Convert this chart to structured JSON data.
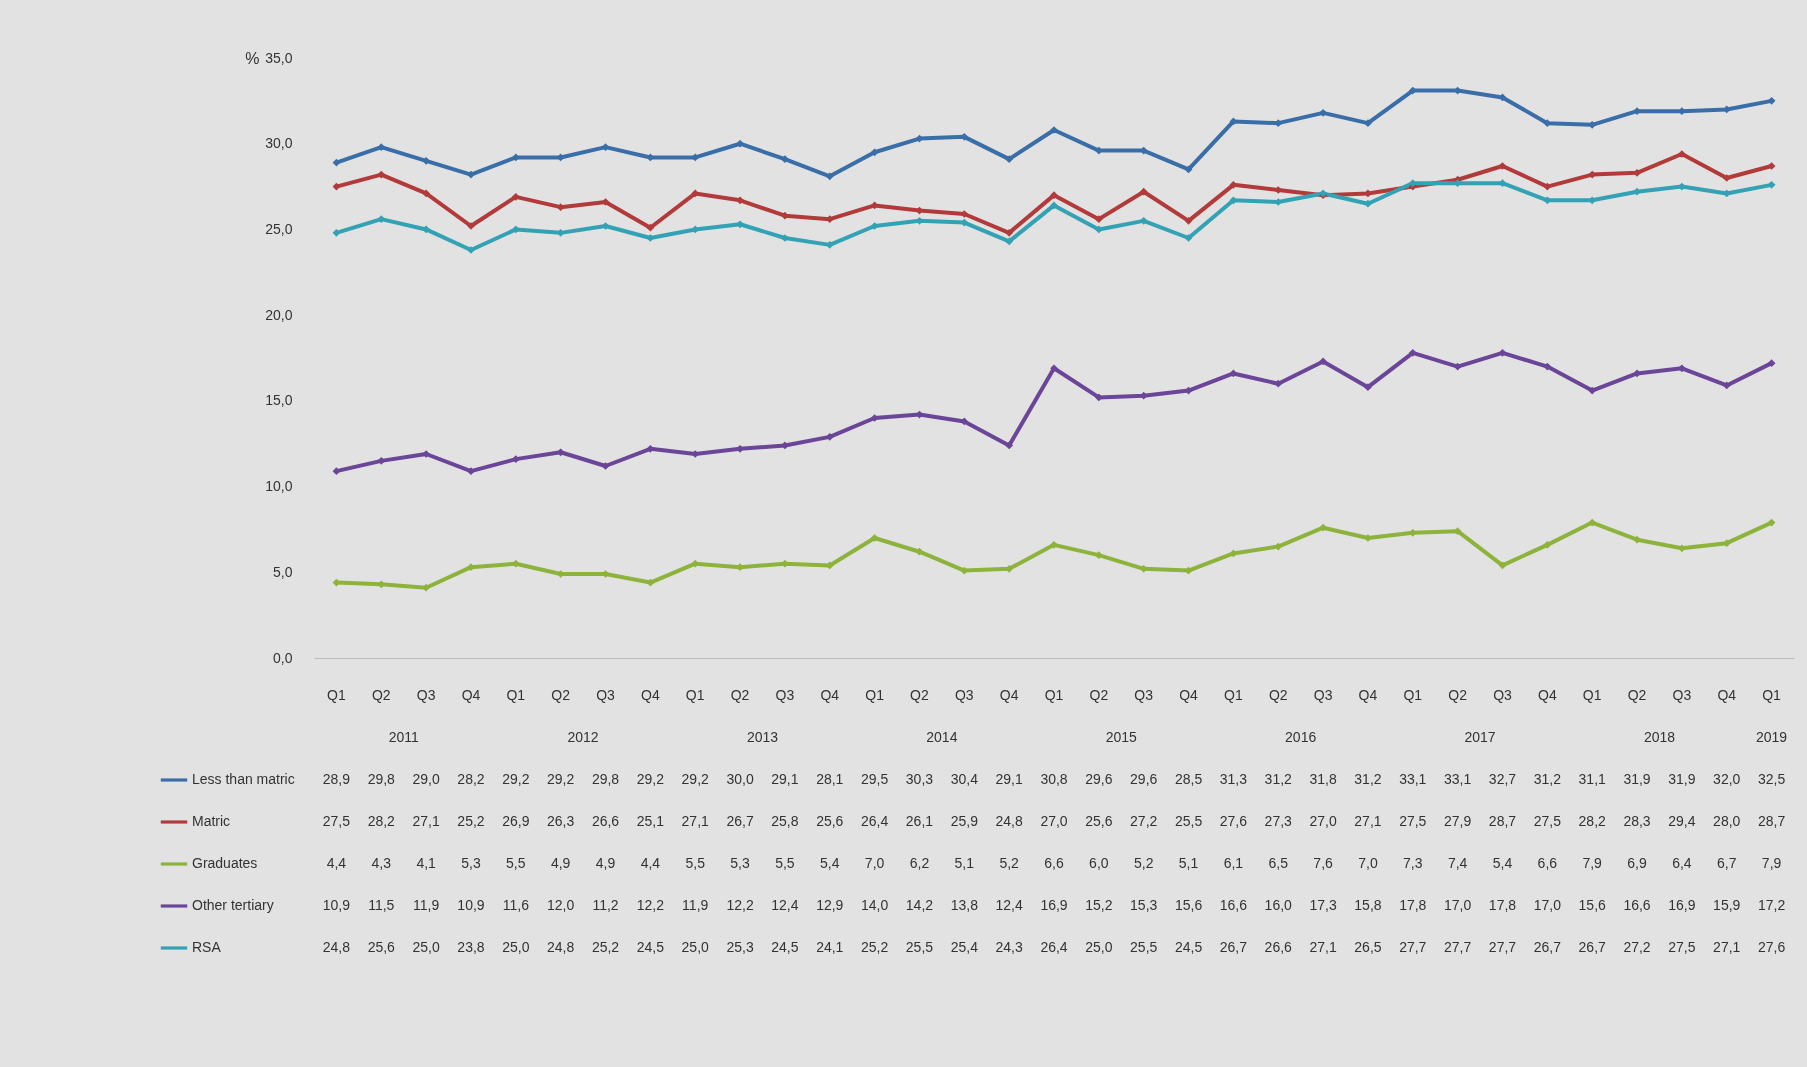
{
  "chart_data": {
    "type": "line",
    "ylabel": "%",
    "categories": [
      "Q1",
      "Q2",
      "Q3",
      "Q4",
      "Q1",
      "Q2",
      "Q3",
      "Q4",
      "Q1",
      "Q2",
      "Q3",
      "Q4",
      "Q1",
      "Q2",
      "Q3",
      "Q4",
      "Q1",
      "Q2",
      "Q3",
      "Q4",
      "Q1",
      "Q2",
      "Q3",
      "Q4",
      "Q1",
      "Q2",
      "Q3",
      "Q4",
      "Q1",
      "Q2",
      "Q3",
      "Q4",
      "Q1"
    ],
    "annotations": [
      "2011",
      "2012",
      "2013",
      "2014",
      "2015",
      "2016",
      "2017",
      "2018",
      "2019"
    ],
    "series": [
      {
        "name": "Less than matric",
        "color": "#3a6ea8",
        "values": [
          28.9,
          29.8,
          29.0,
          28.2,
          29.2,
          29.2,
          29.8,
          29.2,
          29.2,
          30.0,
          29.1,
          28.1,
          29.5,
          30.3,
          30.4,
          29.1,
          30.8,
          29.6,
          29.6,
          28.5,
          31.3,
          31.2,
          31.8,
          31.2,
          33.1,
          33.1,
          32.7,
          31.2,
          31.1,
          31.9,
          31.9,
          32.0,
          32.5
        ],
        "value_labels": [
          "28,9",
          "29,8",
          "29,0",
          "28,2",
          "29,2",
          "29,2",
          "29,8",
          "29,2",
          "29,2",
          "30,0",
          "29,1",
          "28,1",
          "29,5",
          "30,3",
          "30,4",
          "29,1",
          "30,8",
          "29,6",
          "29,6",
          "28,5",
          "31,3",
          "31,2",
          "31,8",
          "31,2",
          "33,1",
          "33,1",
          "32,7",
          "31,2",
          "31,1",
          "31,9",
          "31,9",
          "32,0",
          "32,5"
        ]
      },
      {
        "name": "Matric",
        "color": "#b23a3a",
        "values": [
          27.5,
          28.2,
          27.1,
          25.2,
          26.9,
          26.3,
          26.6,
          25.1,
          27.1,
          26.7,
          25.8,
          25.6,
          26.4,
          26.1,
          25.9,
          24.8,
          27.0,
          25.6,
          27.2,
          25.5,
          27.6,
          27.3,
          27.0,
          27.1,
          27.5,
          27.9,
          28.7,
          27.5,
          28.2,
          28.3,
          29.4,
          28.0,
          28.7
        ],
        "value_labels": [
          "27,5",
          "28,2",
          "27,1",
          "25,2",
          "26,9",
          "26,3",
          "26,6",
          "25,1",
          "27,1",
          "26,7",
          "25,8",
          "25,6",
          "26,4",
          "26,1",
          "25,9",
          "24,8",
          "27,0",
          "25,6",
          "27,2",
          "25,5",
          "27,6",
          "27,3",
          "27,0",
          "27,1",
          "27,5",
          "27,9",
          "28,7",
          "27,5",
          "28,2",
          "28,3",
          "29,4",
          "28,0",
          "28,7"
        ]
      },
      {
        "name": "Graduates",
        "color": "#8db33c",
        "values": [
          4.4,
          4.3,
          4.1,
          5.3,
          5.5,
          4.9,
          4.9,
          4.4,
          5.5,
          5.3,
          5.5,
          5.4,
          7.0,
          6.2,
          5.1,
          5.2,
          6.6,
          6.0,
          5.2,
          5.1,
          6.1,
          6.5,
          7.6,
          7.0,
          7.3,
          7.4,
          5.4,
          6.6,
          7.9,
          6.9,
          6.4,
          6.7,
          7.9
        ],
        "value_labels": [
          "4,4",
          "4,3",
          "4,1",
          "5,3",
          "5,5",
          "4,9",
          "4,9",
          "4,4",
          "5,5",
          "5,3",
          "5,5",
          "5,4",
          "7,0",
          "6,2",
          "5,1",
          "5,2",
          "6,6",
          "6,0",
          "5,2",
          "5,1",
          "6,1",
          "6,5",
          "7,6",
          "7,0",
          "7,3",
          "7,4",
          "5,4",
          "6,6",
          "7,9",
          "6,9",
          "6,4",
          "6,7",
          "7,9"
        ]
      },
      {
        "name": "Other tertiary",
        "color": "#6b4597",
        "values": [
          10.9,
          11.5,
          11.9,
          10.9,
          11.6,
          12.0,
          11.2,
          12.2,
          11.9,
          12.2,
          12.4,
          12.9,
          14.0,
          14.2,
          13.8,
          12.4,
          16.9,
          15.2,
          15.3,
          15.6,
          16.6,
          16.0,
          17.3,
          15.8,
          17.8,
          17.0,
          17.8,
          17.0,
          15.6,
          16.6,
          16.9,
          15.9,
          17.2
        ],
        "value_labels": [
          "10,9",
          "11,5",
          "11,9",
          "10,9",
          "11,6",
          "12,0",
          "11,2",
          "12,2",
          "11,9",
          "12,2",
          "12,4",
          "12,9",
          "14,0",
          "14,2",
          "13,8",
          "12,4",
          "16,9",
          "15,2",
          "15,3",
          "15,6",
          "16,6",
          "16,0",
          "17,3",
          "15,8",
          "17,8",
          "17,0",
          "17,8",
          "17,0",
          "15,6",
          "16,6",
          "16,9",
          "15,9",
          "17,2"
        ]
      },
      {
        "name": "RSA",
        "color": "#33a2b4",
        "values": [
          24.8,
          25.6,
          25.0,
          23.8,
          25.0,
          24.8,
          25.2,
          24.5,
          25.0,
          25.3,
          24.5,
          24.1,
          25.2,
          25.5,
          25.4,
          24.3,
          26.4,
          25.0,
          25.5,
          24.5,
          26.7,
          26.6,
          27.1,
          26.5,
          27.7,
          27.7,
          27.7,
          26.7,
          26.7,
          27.2,
          27.5,
          27.1,
          27.6
        ],
        "value_labels": [
          "24,8",
          "25,6",
          "25,0",
          "23,8",
          "25,0",
          "24,8",
          "25,2",
          "24,5",
          "25,0",
          "25,3",
          "24,5",
          "24,1",
          "25,2",
          "25,5",
          "25,4",
          "24,3",
          "26,4",
          "25,0",
          "25,5",
          "24,5",
          "26,7",
          "26,6",
          "27,1",
          "26,5",
          "27,7",
          "27,7",
          "27,7",
          "26,7",
          "26,7",
          "27,2",
          "27,5",
          "27,1",
          "27,6"
        ]
      }
    ],
    "ylim": [
      0,
      35
    ],
    "yticks": [
      {
        "value": 0,
        "label": "0,0"
      },
      {
        "value": 5,
        "label": "5,0"
      },
      {
        "value": 10,
        "label": "10,0"
      },
      {
        "value": 15,
        "label": "15,0"
      },
      {
        "value": 20,
        "label": "20,0"
      },
      {
        "value": 25,
        "label": "25,0"
      },
      {
        "value": 30,
        "label": "30,0"
      },
      {
        "value": 35,
        "label": "35,0"
      }
    ],
    "grid": false,
    "marker": "diamond",
    "line_style": "solid",
    "legend": "bottom left"
  }
}
